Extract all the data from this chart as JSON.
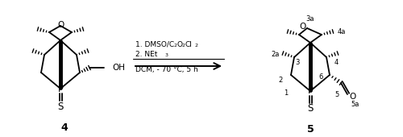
{
  "background_color": "#ffffff",
  "figure_width": 5.0,
  "figure_height": 1.7,
  "dpi": 100,
  "compound4_label": "4",
  "compound5_label": "5",
  "text_color": "#000000",
  "line_color": "#000000",
  "cond1": "1. DMSO/C",
  "cond1b": "2",
  "cond1c": "O",
  "cond1d": "2",
  "cond1e": "Cl",
  "cond1f": "2",
  "cond2": "2. NEt",
  "cond2b": "3",
  "cond3": "DCM, - 70 °C, 5 h",
  "label_3a": "3a",
  "label_4a": "4a",
  "label_2a": "2a",
  "label_2": "2",
  "label_3": "3",
  "label_4": "4",
  "label_5": "5",
  "label_6": "6",
  "label_1": "1",
  "label_5a": "5a"
}
